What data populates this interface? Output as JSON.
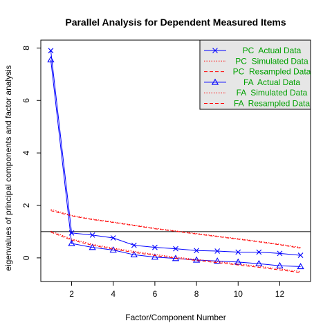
{
  "chart_data": {
    "type": "line",
    "title": "Parallel Analysis for Dependent Measured Items",
    "xlabel": "Factor/Component Number",
    "ylabel": "eigenvalues of principal components and factor analysis",
    "xlim": [
      0.52,
      13.48
    ],
    "ylim": [
      -0.9,
      8.3
    ],
    "xticks": [
      2,
      4,
      6,
      8,
      10,
      12
    ],
    "yticks": [
      0,
      2,
      4,
      6,
      8
    ],
    "reference_line": 1,
    "legend_position": "top-right",
    "x": [
      1,
      2,
      3,
      4,
      5,
      6,
      7,
      8,
      9,
      10,
      11,
      12,
      13
    ],
    "series": [
      {
        "name": "PC  Actual Data",
        "color": "#0000ff",
        "style": "solid-x",
        "values": [
          7.9,
          0.95,
          0.87,
          0.76,
          0.48,
          0.4,
          0.35,
          0.28,
          0.26,
          0.22,
          0.22,
          0.17,
          0.1
        ]
      },
      {
        "name": "PC  Simulated Data",
        "color": "#ff0000",
        "style": "dotted",
        "values": [
          1.85,
          1.62,
          1.48,
          1.37,
          1.25,
          1.13,
          1.03,
          0.93,
          0.83,
          0.73,
          0.63,
          0.52,
          0.4
        ]
      },
      {
        "name": "PC  Resampled Data",
        "color": "#ff0000",
        "style": "dashed",
        "values": [
          1.8,
          1.6,
          1.46,
          1.35,
          1.23,
          1.11,
          1.01,
          0.91,
          0.81,
          0.71,
          0.61,
          0.5,
          0.37
        ]
      },
      {
        "name": "FA  Actual Data",
        "color": "#0000ff",
        "style": "solid-triangle",
        "values": [
          7.55,
          0.55,
          0.4,
          0.3,
          0.12,
          0.03,
          -0.02,
          -0.08,
          -0.12,
          -0.16,
          -0.22,
          -0.3,
          -0.33
        ]
      },
      {
        "name": "FA  Simulated Data",
        "color": "#ff0000",
        "style": "dotted",
        "values": [
          1.02,
          0.72,
          0.52,
          0.37,
          0.25,
          0.13,
          0.03,
          -0.06,
          -0.14,
          -0.23,
          -0.32,
          -0.42,
          -0.52
        ]
      },
      {
        "name": "FA  Resampled Data",
        "color": "#ff0000",
        "style": "dashed",
        "values": [
          0.98,
          0.68,
          0.48,
          0.33,
          0.21,
          0.09,
          -0.01,
          -0.1,
          -0.18,
          -0.27,
          -0.36,
          -0.46,
          -0.56
        ]
      }
    ]
  }
}
